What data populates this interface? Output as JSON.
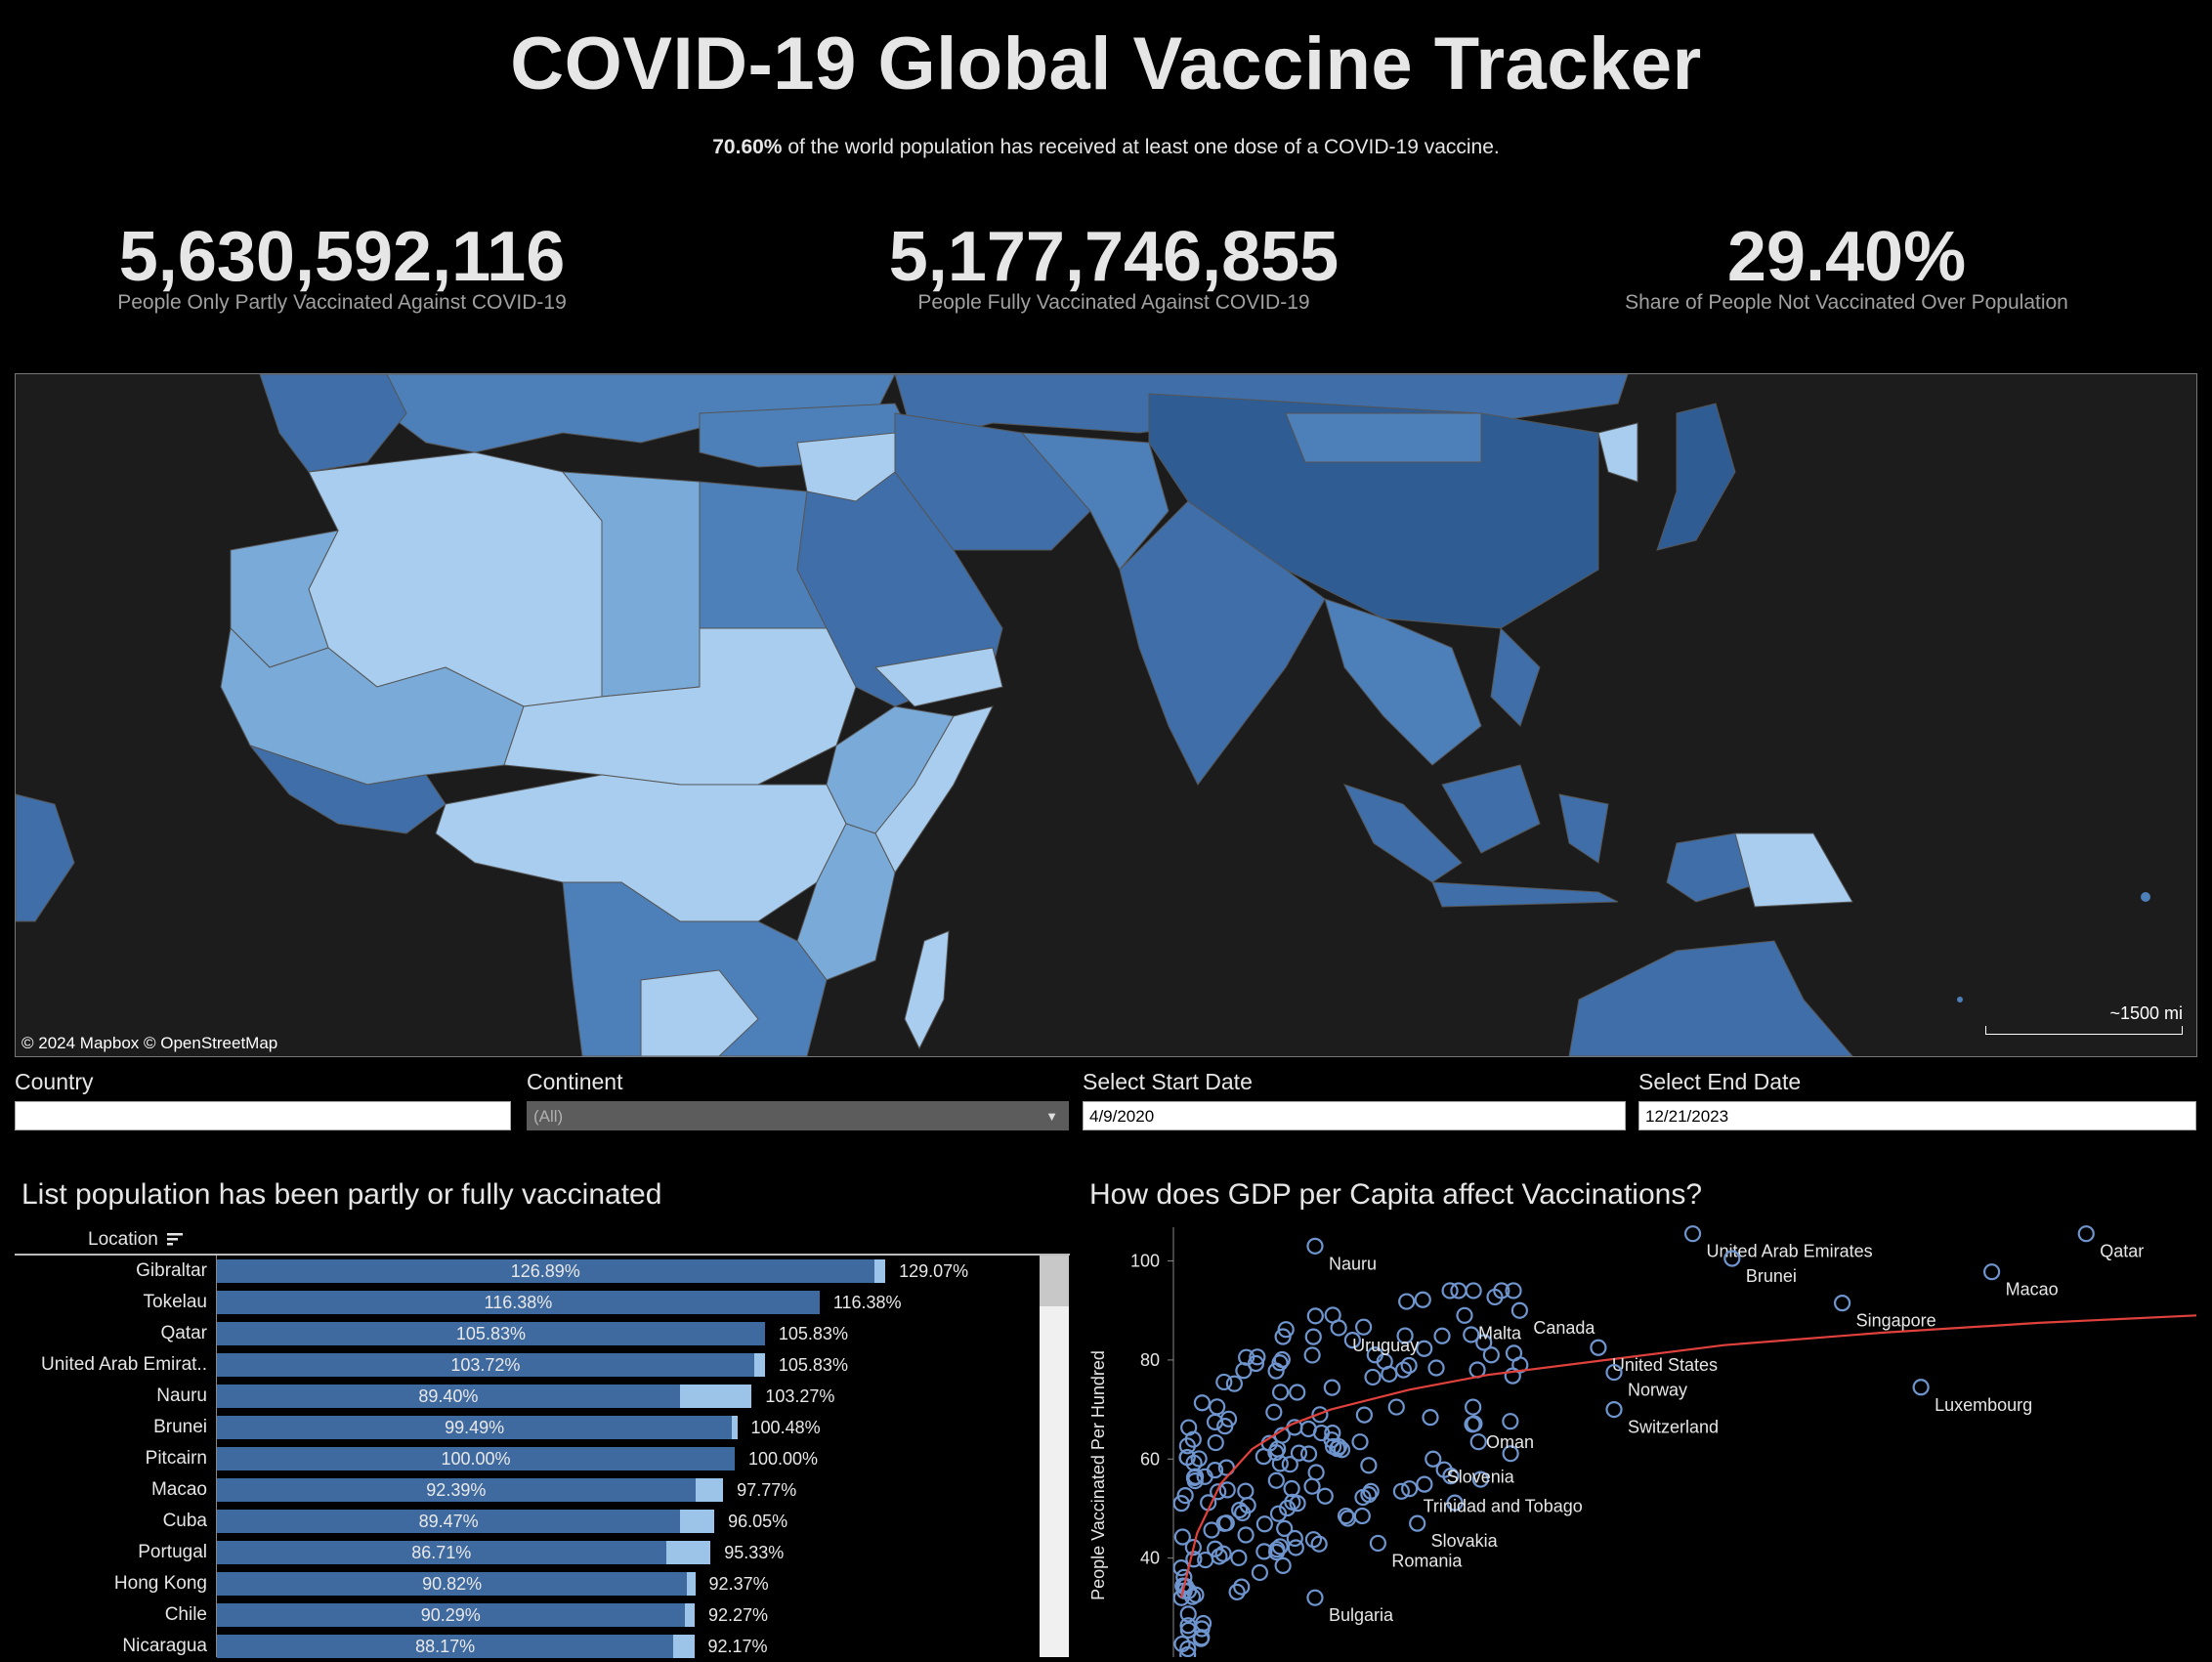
{
  "header": {
    "title": "COVID-19 Global Vaccine Tracker",
    "subtitle_bold": "70.60%",
    "subtitle_rest": " of the world population has received at least one dose of a COVID-19 vaccine."
  },
  "kpis": [
    {
      "value": "5,630,592,116",
      "label": "People Only Partly Vaccinated Against COVID-19"
    },
    {
      "value": "5,177,746,855",
      "label": "People Fully Vaccinated Against COVID-19"
    },
    {
      "value": "29.40%",
      "label": "Share of People Not Vaccinated Over Population"
    }
  ],
  "map": {
    "attribution": "© 2024 Mapbox  © OpenStreetMap",
    "scale": "~1500 mi",
    "colors": {
      "water": "#1c1c1c",
      "dark": "#2f5c92",
      "mid": "#4d7fb9",
      "light": "#7aaad8",
      "pale": "#a8cdee"
    }
  },
  "filters": {
    "country": {
      "label": "Country",
      "value": ""
    },
    "continent": {
      "label": "Continent",
      "value": "(All)"
    },
    "start": {
      "label": "Select Start Date",
      "value": "4/9/2020"
    },
    "end": {
      "label": "Select End Date",
      "value": "12/21/2023"
    }
  },
  "bar_section": {
    "title": "List population has been partly or fully vaccinated",
    "column_header": "Location",
    "colors": {
      "partly": "#3f6a9f",
      "fully": "#9cc4e8"
    }
  },
  "scatter_section": {
    "title": "How does GDP per Capita affect Vaccinations?",
    "colors": {
      "points": "#6f95cf",
      "trend": "#e0413c"
    }
  },
  "chart_data": [
    {
      "type": "bar",
      "title": "List population has been partly or fully vaccinated",
      "categories": [
        "Gibraltar",
        "Tokelau",
        "Qatar",
        "United Arab Emirat..",
        "Nauru",
        "Brunei",
        "Pitcairn",
        "Macao",
        "Cuba",
        "Portugal",
        "Hong Kong",
        "Chile",
        "Nicaragua"
      ],
      "series": [
        {
          "values": [
            126.89,
            116.38,
            105.83,
            103.72,
            89.4,
            99.49,
            100.0,
            92.39,
            89.47,
            86.71,
            90.82,
            90.29,
            88.17
          ]
        },
        {
          "values": [
            129.07,
            116.38,
            105.83,
            105.83,
            103.27,
            100.48,
            100.0,
            97.77,
            96.05,
            95.33,
            92.37,
            92.27,
            92.17
          ]
        }
      ],
      "part_labels": [
        "126.89%",
        "116.38%",
        "105.83%",
        "103.72%",
        "89.40%",
        "99.49%",
        "100.00%",
        "92.39%",
        "89.47%",
        "86.71%",
        "90.82%",
        "90.29%",
        "88.17%"
      ],
      "full_labels": [
        "129.07%",
        "116.38%",
        "105.83%",
        "105.83%",
        "103.27%",
        "100.48%",
        "100.00%",
        "97.77%",
        "96.05%",
        "95.33%",
        "92.37%",
        "92.27%",
        "92.17%"
      ],
      "xlim": [
        0,
        140
      ]
    },
    {
      "type": "scatter",
      "title": "How does GDP per Capita affect Vaccinations?",
      "ylabel": "People Vaccinated Per Hundred",
      "ylim": [
        20,
        108
      ],
      "xlim": [
        0,
        130000
      ],
      "yticks": [
        40,
        60,
        80,
        100
      ],
      "labeled_points": [
        {
          "name": "United Arab Emirates",
          "x": 66000,
          "y": 105.5
        },
        {
          "name": "Qatar",
          "x": 116000,
          "y": 105.5
        },
        {
          "name": "Nauru",
          "x": 18000,
          "y": 103
        },
        {
          "name": "Brunei",
          "x": 71000,
          "y": 100.5
        },
        {
          "name": "Macao",
          "x": 104000,
          "y": 97.8
        },
        {
          "name": "Malta",
          "x": 37000,
          "y": 89
        },
        {
          "name": "Canada",
          "x": 44000,
          "y": 90
        },
        {
          "name": "Singapore",
          "x": 85000,
          "y": 91.5
        },
        {
          "name": "Uruguay",
          "x": 21000,
          "y": 86.5
        },
        {
          "name": "United States",
          "x": 54000,
          "y": 82.5
        },
        {
          "name": "Norway",
          "x": 56000,
          "y": 77.5
        },
        {
          "name": "Luxembourg",
          "x": 95000,
          "y": 74.5
        },
        {
          "name": "Switzerland",
          "x": 56000,
          "y": 70
        },
        {
          "name": "Oman",
          "x": 38000,
          "y": 67
        },
        {
          "name": "Slovenia",
          "x": 33000,
          "y": 60
        },
        {
          "name": "Trinidad and Tobago",
          "x": 30000,
          "y": 54
        },
        {
          "name": "Slovakia",
          "x": 31000,
          "y": 47
        },
        {
          "name": "Romania",
          "x": 26000,
          "y": 43
        },
        {
          "name": "Bulgaria",
          "x": 18000,
          "y": 32
        }
      ],
      "trend": [
        [
          1000,
          32
        ],
        [
          3000,
          45
        ],
        [
          6000,
          55
        ],
        [
          10000,
          62
        ],
        [
          15000,
          67
        ],
        [
          20000,
          70
        ],
        [
          30000,
          74
        ],
        [
          40000,
          77
        ],
        [
          55000,
          80
        ],
        [
          70000,
          83
        ],
        [
          90000,
          85.5
        ],
        [
          110000,
          87.5
        ],
        [
          130000,
          89
        ]
      ]
    }
  ]
}
